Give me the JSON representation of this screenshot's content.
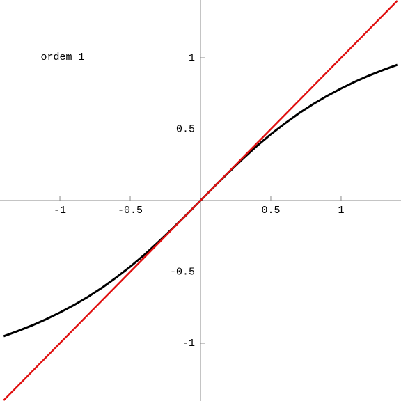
{
  "chart_data": {
    "type": "line",
    "annotation": "ordem 1",
    "x": [
      -1.4,
      -1.3,
      -1.2,
      -1.1,
      -1.0,
      -0.9,
      -0.8,
      -0.7,
      -0.6,
      -0.5,
      -0.4,
      -0.3,
      -0.2,
      -0.1,
      0,
      0.1,
      0.2,
      0.3,
      0.4,
      0.5,
      0.6,
      0.7,
      0.8,
      0.9,
      1.0,
      1.1,
      1.2,
      1.3,
      1.4
    ],
    "series": [
      {
        "color": "#000000",
        "values": [
          -0.951,
          -0.915,
          -0.876,
          -0.833,
          -0.785,
          -0.733,
          -0.675,
          -0.611,
          -0.54,
          -0.464,
          -0.381,
          -0.291,
          -0.197,
          -0.1,
          0,
          0.1,
          0.197,
          0.291,
          0.381,
          0.464,
          0.54,
          0.611,
          0.675,
          0.733,
          0.785,
          0.833,
          0.876,
          0.915,
          0.951
        ]
      },
      {
        "color": "#e01010",
        "values": [
          -1.4,
          -1.3,
          -1.2,
          -1.1,
          -1.0,
          -0.9,
          -0.8,
          -0.7,
          -0.6,
          -0.5,
          -0.4,
          -0.3,
          -0.2,
          -0.1,
          0,
          0.1,
          0.2,
          0.3,
          0.4,
          0.5,
          0.6,
          0.7,
          0.8,
          0.9,
          1.0,
          1.1,
          1.2,
          1.3,
          1.4
        ]
      }
    ],
    "xlim": [
      -1.426,
      1.426
    ],
    "ylim": [
      -1.405,
      1.405
    ],
    "xticks": [
      -1,
      -0.5,
      0.5,
      1
    ],
    "yticks": [
      -1,
      -0.5,
      0.5,
      1
    ]
  }
}
